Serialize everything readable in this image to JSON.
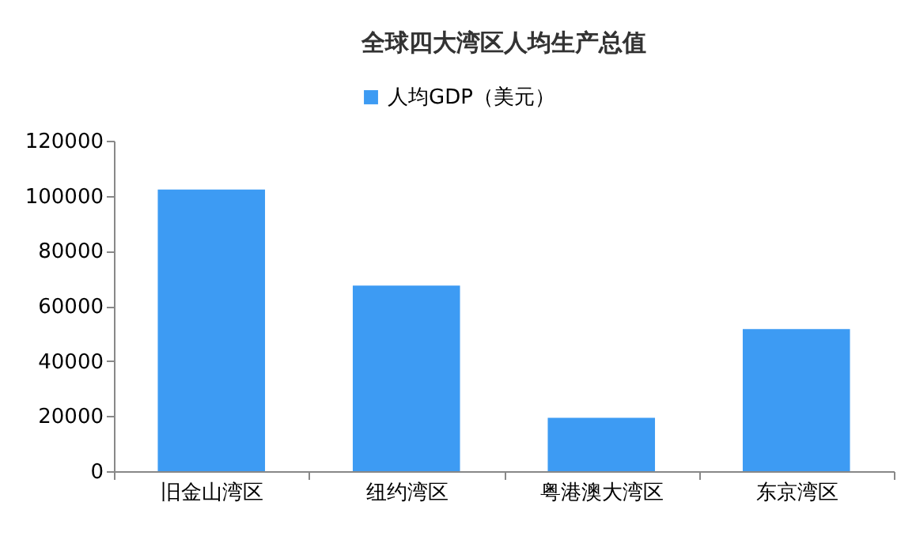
{
  "chart_data": {
    "type": "bar",
    "title": "全球四大湾区人均生产总值",
    "categories": [
      "旧金山湾区",
      "纽约湾区",
      "粤港澳大湾区",
      "东京湾区"
    ],
    "series": [
      {
        "name": "人均GDP（美元）",
        "color": "#3d9bf3",
        "values": [
          102300,
          67400,
          19400,
          51600
        ]
      }
    ],
    "ylim": [
      0,
      120000
    ],
    "yticks": [
      0,
      20000,
      40000,
      60000,
      80000,
      100000,
      120000
    ],
    "grid": false,
    "legend": "top"
  }
}
